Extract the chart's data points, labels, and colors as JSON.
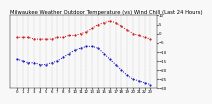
{
  "title": "Milwaukee Weather Outdoor Temperature (vs) Wind Chill (Last 24 Hours)",
  "temp_color": "#cc0000",
  "windchill_color": "#0000bb",
  "background_color": "#f8f8f8",
  "plot_bg_color": "#f8f8f8",
  "grid_color": "#888888",
  "ylim": [
    -30,
    10
  ],
  "yticks": [
    10,
    5,
    0,
    -5,
    -10,
    -15,
    -20,
    -25,
    -30
  ],
  "temp_values": [
    -2,
    -2,
    -2,
    -3,
    -3,
    -3,
    -3,
    -2,
    -2,
    -1,
    -1,
    0,
    1,
    3,
    5,
    6,
    7,
    6,
    4,
    2,
    0,
    -1,
    -2,
    -3
  ],
  "windchill_values": [
    -14,
    -15,
    -16,
    -16,
    -17,
    -17,
    -16,
    -15,
    -13,
    -11,
    -9,
    -8,
    -7,
    -7,
    -8,
    -11,
    -14,
    -17,
    -20,
    -23,
    -25,
    -26,
    -27,
    -28
  ],
  "n_points": 24,
  "x_labels": [
    "0",
    "",
    "",
    "1",
    "",
    "",
    "2",
    "",
    "",
    "3",
    "",
    "",
    "4",
    "",
    "",
    "5",
    "",
    "",
    "6",
    "",
    "",
    "7",
    "",
    "",
    "8",
    "",
    "",
    "9",
    "",
    "",
    "10",
    "",
    "",
    "11",
    "",
    "",
    "12",
    "",
    "",
    "13",
    "",
    "",
    "14",
    "",
    "",
    "15",
    "",
    "",
    "16",
    "",
    "",
    "17",
    "",
    "",
    "18",
    "",
    "",
    "19",
    "",
    "",
    "20",
    "",
    "",
    "21",
    "",
    "",
    "22",
    "",
    "",
    "23"
  ],
  "title_fontsize": 3.8,
  "tick_fontsize": 2.8,
  "line_width": 0.7,
  "marker_size": 1.0
}
